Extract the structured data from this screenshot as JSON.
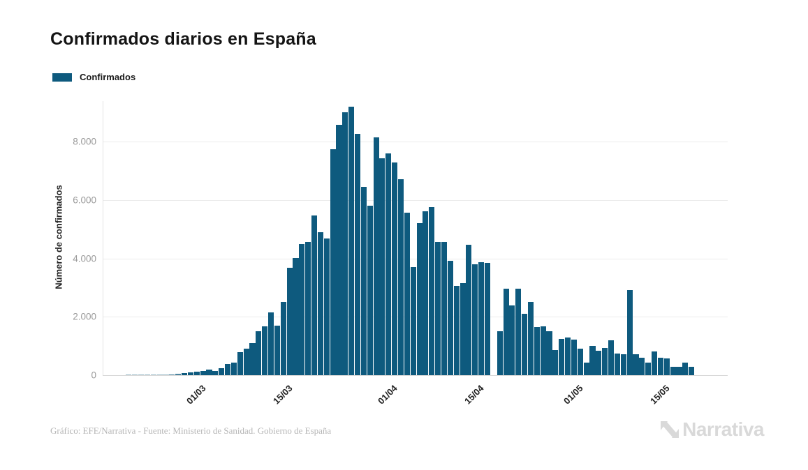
{
  "header": {
    "title": "Confirmados diarios en España"
  },
  "legend": {
    "label": "Confirmados",
    "color": "#0e5a7e"
  },
  "y_axis": {
    "title": "Número de confirmados",
    "tick_labels": [
      "0",
      "2.000",
      "4.000",
      "6.000",
      "8.000"
    ],
    "tick_values": [
      0,
      2000,
      4000,
      6000,
      8000
    ]
  },
  "x_axis": {
    "ticks": [
      {
        "label": "01/03",
        "index": 10
      },
      {
        "label": "15/03",
        "index": 24
      },
      {
        "label": "01/04",
        "index": 41
      },
      {
        "label": "15/04",
        "index": 55
      },
      {
        "label": "01/05",
        "index": 71
      },
      {
        "label": "15/05",
        "index": 85
      }
    ]
  },
  "footer": {
    "source": "Gráfico: EFE/Narrativa - Fuente: Ministerio de Sanidad. Gobierno de España",
    "brand": "Narrativa"
  },
  "chart_data": {
    "type": "bar",
    "title": "Confirmados diarios en España",
    "series_name": "Confirmados",
    "xlabel": "",
    "ylabel": "Número de confirmados",
    "ylim": [
      0,
      9400
    ],
    "grid": "horizontal",
    "legend_position": "top-left",
    "bar_color": "#0e5a7e",
    "note": "null value on 19/04 = missing bar (gap in chart)",
    "x": [
      "20/02",
      "21/02",
      "22/02",
      "23/02",
      "24/02",
      "25/02",
      "26/02",
      "27/02",
      "28/02",
      "29/02",
      "01/03",
      "02/03",
      "03/03",
      "04/03",
      "05/03",
      "06/03",
      "07/03",
      "08/03",
      "09/03",
      "10/03",
      "11/03",
      "12/03",
      "13/03",
      "14/03",
      "15/03",
      "16/03",
      "17/03",
      "18/03",
      "19/03",
      "20/03",
      "21/03",
      "22/03",
      "23/03",
      "24/03",
      "25/03",
      "26/03",
      "27/03",
      "28/03",
      "29/03",
      "30/03",
      "31/03",
      "01/04",
      "02/04",
      "03/04",
      "04/04",
      "05/04",
      "06/04",
      "07/04",
      "08/04",
      "09/04",
      "10/04",
      "11/04",
      "12/04",
      "13/04",
      "14/04",
      "15/04",
      "16/04",
      "17/04",
      "18/04",
      "19/04",
      "20/04",
      "21/04",
      "22/04",
      "23/04",
      "24/04",
      "25/04",
      "26/04",
      "27/04",
      "28/04",
      "29/04",
      "30/04",
      "01/05",
      "02/05",
      "03/05",
      "04/05",
      "05/05",
      "06/05",
      "07/05",
      "08/05",
      "09/05",
      "10/05",
      "11/05",
      "12/05",
      "13/05",
      "14/05",
      "15/05",
      "16/05",
      "17/05",
      "18/05",
      "19/05",
      "20/05",
      "21/05"
    ],
    "values": [
      3,
      4,
      6,
      8,
      10,
      15,
      22,
      32,
      45,
      60,
      90,
      120,
      150,
      200,
      145,
      240,
      380,
      440,
      780,
      915,
      1100,
      1505,
      1680,
      2150,
      1690,
      2510,
      3690,
      4020,
      4485,
      4570,
      5470,
      4890,
      4675,
      7740,
      8570,
      9005,
      9190,
      8275,
      6440,
      5805,
      8155,
      7420,
      7600,
      7295,
      6705,
      5565,
      3695,
      5210,
      5610,
      5750,
      4555,
      4555,
      3910,
      3060,
      3155,
      4470,
      3790,
      3870,
      3855,
      null,
      1505,
      2960,
      2380,
      2960,
      2100,
      2515,
      1640,
      1680,
      1505,
      865,
      1240,
      1290,
      1225,
      910,
      430,
      1005,
      845,
      925,
      1185,
      735,
      710,
      2915,
      710,
      590,
      430,
      805,
      590,
      565,
      295,
      295,
      430,
      295
    ]
  }
}
